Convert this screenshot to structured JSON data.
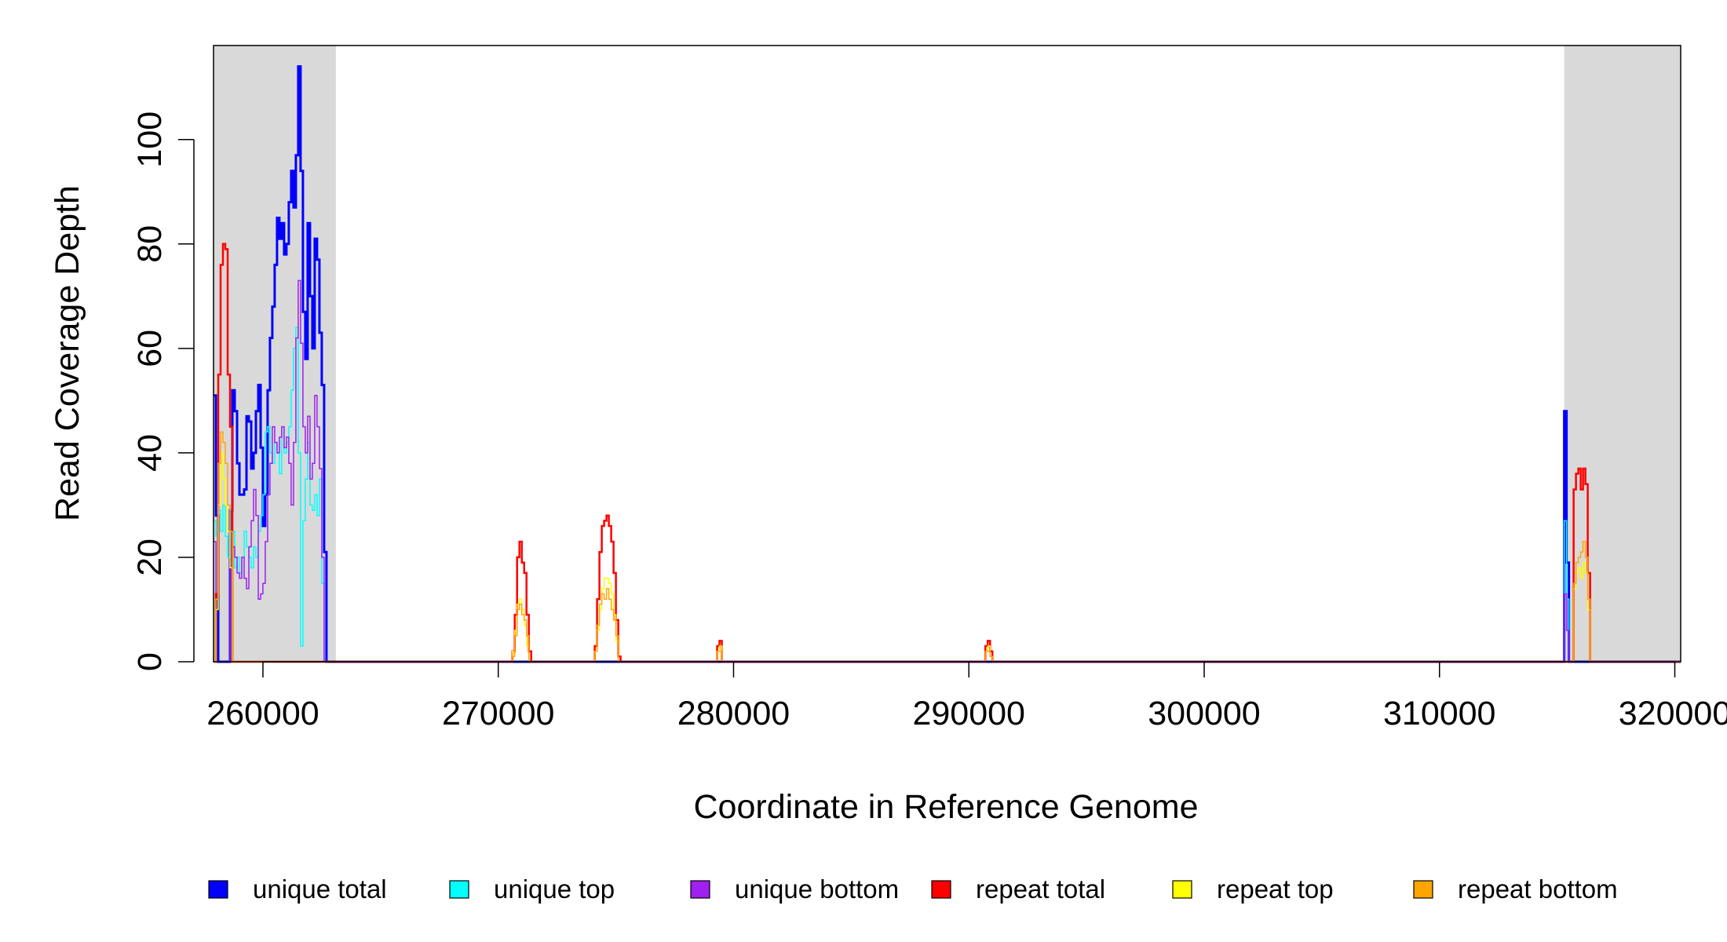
{
  "chart_data": {
    "type": "line",
    "xlabel": "Coordinate in Reference Genome",
    "ylabel": "Read Coverage Depth",
    "xlim": [
      257900,
      320250
    ],
    "ylim": [
      0,
      118
    ],
    "x_ticks": [
      260000,
      270000,
      280000,
      290000,
      300000,
      310000,
      320000
    ],
    "y_ticks": [
      0,
      20,
      40,
      60,
      80,
      100
    ],
    "shaded_regions": [
      [
        257900,
        263100
      ],
      [
        315300,
        320250
      ]
    ],
    "legend_position": "bottom",
    "series": [
      {
        "name": "unique total",
        "color": "#0000ff",
        "width": 3,
        "points": [
          [
            257900,
            51
          ],
          [
            258000,
            28
          ],
          [
            258100,
            0
          ],
          [
            258500,
            0
          ],
          [
            258600,
            29
          ],
          [
            258700,
            52
          ],
          [
            258800,
            48
          ],
          [
            258900,
            38
          ],
          [
            259000,
            32
          ],
          [
            259200,
            33
          ],
          [
            259300,
            47
          ],
          [
            259400,
            46
          ],
          [
            259500,
            37
          ],
          [
            259600,
            40
          ],
          [
            259700,
            48
          ],
          [
            259800,
            53
          ],
          [
            259900,
            41
          ],
          [
            260000,
            26
          ],
          [
            260100,
            32
          ],
          [
            260200,
            52
          ],
          [
            260300,
            62
          ],
          [
            260400,
            68
          ],
          [
            260500,
            76
          ],
          [
            260600,
            85
          ],
          [
            260700,
            81
          ],
          [
            260800,
            84
          ],
          [
            260900,
            78
          ],
          [
            261000,
            80
          ],
          [
            261100,
            88
          ],
          [
            261200,
            94
          ],
          [
            261300,
            87
          ],
          [
            261400,
            97
          ],
          [
            261500,
            114
          ],
          [
            261600,
            94
          ],
          [
            261700,
            67
          ],
          [
            261800,
            58
          ],
          [
            261900,
            84
          ],
          [
            262000,
            70
          ],
          [
            262100,
            60
          ],
          [
            262200,
            81
          ],
          [
            262300,
            77
          ],
          [
            262400,
            63
          ],
          [
            262500,
            53
          ],
          [
            262600,
            21
          ],
          [
            262700,
            0
          ],
          [
            315200,
            0
          ],
          [
            315300,
            48
          ],
          [
            315400,
            19
          ],
          [
            315500,
            0
          ],
          [
            320250,
            0
          ]
        ]
      },
      {
        "name": "unique top",
        "color": "#00ffff",
        "width": 1.5,
        "points": [
          [
            257900,
            27
          ],
          [
            258000,
            24
          ],
          [
            258100,
            29
          ],
          [
            258200,
            25
          ],
          [
            258300,
            30
          ],
          [
            258400,
            24
          ],
          [
            258500,
            20
          ],
          [
            258600,
            29
          ],
          [
            258700,
            25
          ],
          [
            258800,
            18
          ],
          [
            258900,
            20
          ],
          [
            259000,
            17
          ],
          [
            259100,
            20
          ],
          [
            259200,
            25
          ],
          [
            259300,
            22
          ],
          [
            259400,
            20
          ],
          [
            259500,
            18
          ],
          [
            259600,
            22
          ],
          [
            259700,
            20
          ],
          [
            259800,
            25
          ],
          [
            259900,
            28
          ],
          [
            260000,
            32
          ],
          [
            260100,
            44
          ],
          [
            260200,
            45
          ],
          [
            260300,
            40
          ],
          [
            260400,
            38
          ],
          [
            260500,
            42
          ],
          [
            260600,
            40
          ],
          [
            260700,
            36
          ],
          [
            260800,
            45
          ],
          [
            260900,
            40
          ],
          [
            261000,
            42
          ],
          [
            261100,
            45
          ],
          [
            261200,
            52
          ],
          [
            261300,
            60
          ],
          [
            261400,
            64
          ],
          [
            261500,
            40
          ],
          [
            261600,
            3
          ],
          [
            261700,
            27
          ],
          [
            261800,
            35
          ],
          [
            261900,
            42
          ],
          [
            262000,
            30
          ],
          [
            262100,
            29
          ],
          [
            262200,
            32
          ],
          [
            262300,
            28
          ],
          [
            262400,
            35
          ],
          [
            262500,
            15
          ],
          [
            262600,
            0
          ],
          [
            315200,
            0
          ],
          [
            315300,
            27
          ],
          [
            315400,
            12
          ],
          [
            315500,
            0
          ],
          [
            320250,
            0
          ]
        ]
      },
      {
        "name": "unique bottom",
        "color": "#a020f0",
        "width": 1.5,
        "points": [
          [
            257900,
            23
          ],
          [
            258000,
            0
          ],
          [
            258500,
            0
          ],
          [
            258600,
            23
          ],
          [
            258700,
            22
          ],
          [
            258800,
            20
          ],
          [
            258900,
            17
          ],
          [
            259000,
            16
          ],
          [
            259100,
            20
          ],
          [
            259200,
            16
          ],
          [
            259300,
            14
          ],
          [
            259400,
            22
          ],
          [
            259500,
            27
          ],
          [
            259600,
            33
          ],
          [
            259700,
            28
          ],
          [
            259800,
            12
          ],
          [
            259900,
            13
          ],
          [
            260000,
            15
          ],
          [
            260100,
            23
          ],
          [
            260200,
            32
          ],
          [
            260300,
            38
          ],
          [
            260400,
            45
          ],
          [
            260500,
            42
          ],
          [
            260600,
            40
          ],
          [
            260700,
            43
          ],
          [
            260800,
            45
          ],
          [
            260900,
            41
          ],
          [
            261000,
            43
          ],
          [
            261100,
            38
          ],
          [
            261200,
            30
          ],
          [
            261300,
            42
          ],
          [
            261400,
            62
          ],
          [
            261500,
            73
          ],
          [
            261600,
            61
          ],
          [
            261700,
            45
          ],
          [
            261800,
            40
          ],
          [
            261900,
            47
          ],
          [
            262000,
            35
          ],
          [
            262100,
            38
          ],
          [
            262200,
            51
          ],
          [
            262300,
            45
          ],
          [
            262400,
            37
          ],
          [
            262500,
            20
          ],
          [
            262600,
            0
          ],
          [
            315200,
            0
          ],
          [
            315300,
            13
          ],
          [
            315400,
            6
          ],
          [
            315500,
            0
          ],
          [
            320250,
            0
          ]
        ]
      },
      {
        "name": "repeat total",
        "color": "#ff0000",
        "width": 2.5,
        "points": [
          [
            257900,
            0
          ],
          [
            258000,
            13
          ],
          [
            258100,
            55
          ],
          [
            258200,
            76
          ],
          [
            258300,
            80
          ],
          [
            258400,
            79
          ],
          [
            258500,
            55
          ],
          [
            258600,
            45
          ],
          [
            258700,
            0
          ],
          [
            270500,
            0
          ],
          [
            270600,
            2
          ],
          [
            270700,
            9
          ],
          [
            270800,
            20
          ],
          [
            270900,
            23
          ],
          [
            271000,
            19
          ],
          [
            271100,
            17
          ],
          [
            271200,
            9
          ],
          [
            271300,
            2
          ],
          [
            271400,
            0
          ],
          [
            274000,
            0
          ],
          [
            274100,
            3
          ],
          [
            274200,
            12
          ],
          [
            274300,
            21
          ],
          [
            274400,
            26
          ],
          [
            274500,
            27
          ],
          [
            274600,
            28
          ],
          [
            274700,
            26
          ],
          [
            274800,
            23
          ],
          [
            274900,
            17
          ],
          [
            275000,
            8
          ],
          [
            275100,
            1
          ],
          [
            275200,
            0
          ],
          [
            279200,
            0
          ],
          [
            279300,
            3
          ],
          [
            279400,
            4
          ],
          [
            279500,
            0
          ],
          [
            290600,
            0
          ],
          [
            290700,
            3
          ],
          [
            290800,
            4
          ],
          [
            290900,
            2
          ],
          [
            291000,
            0
          ],
          [
            315600,
            0
          ],
          [
            315700,
            33
          ],
          [
            315800,
            36
          ],
          [
            315900,
            37
          ],
          [
            316000,
            33
          ],
          [
            316100,
            37
          ],
          [
            316200,
            34
          ],
          [
            316300,
            17
          ],
          [
            316400,
            0
          ],
          [
            320250,
            0
          ]
        ]
      },
      {
        "name": "repeat top",
        "color": "#ffff00",
        "width": 1.5,
        "points": [
          [
            257900,
            0
          ],
          [
            258000,
            10
          ],
          [
            258100,
            30
          ],
          [
            258200,
            40
          ],
          [
            258300,
            35
          ],
          [
            258400,
            30
          ],
          [
            258500,
            25
          ],
          [
            258600,
            18
          ],
          [
            258700,
            0
          ],
          [
            270500,
            0
          ],
          [
            270600,
            2
          ],
          [
            270700,
            6
          ],
          [
            270800,
            11
          ],
          [
            270900,
            12
          ],
          [
            271000,
            10
          ],
          [
            271100,
            7
          ],
          [
            271200,
            3
          ],
          [
            271300,
            0
          ],
          [
            274000,
            0
          ],
          [
            274100,
            2
          ],
          [
            274200,
            6
          ],
          [
            274300,
            10
          ],
          [
            274400,
            14
          ],
          [
            274500,
            16
          ],
          [
            274600,
            16
          ],
          [
            274700,
            15
          ],
          [
            274800,
            13
          ],
          [
            274900,
            9
          ],
          [
            275000,
            4
          ],
          [
            275100,
            0
          ],
          [
            279200,
            0
          ],
          [
            279300,
            2
          ],
          [
            279400,
            3
          ],
          [
            279500,
            0
          ],
          [
            290600,
            0
          ],
          [
            290700,
            2
          ],
          [
            290800,
            3
          ],
          [
            290900,
            1
          ],
          [
            291000,
            0
          ],
          [
            315600,
            0
          ],
          [
            315700,
            14
          ],
          [
            315800,
            17
          ],
          [
            315900,
            18
          ],
          [
            316000,
            16
          ],
          [
            316100,
            19
          ],
          [
            316200,
            17
          ],
          [
            316300,
            10
          ],
          [
            316400,
            0
          ],
          [
            320250,
            0
          ]
        ]
      },
      {
        "name": "repeat bottom",
        "color": "#ffa500",
        "width": 1.5,
        "points": [
          [
            257900,
            0
          ],
          [
            258000,
            12
          ],
          [
            258100,
            38
          ],
          [
            258200,
            44
          ],
          [
            258300,
            42
          ],
          [
            258400,
            38
          ],
          [
            258500,
            30
          ],
          [
            258600,
            25
          ],
          [
            258700,
            0
          ],
          [
            270500,
            0
          ],
          [
            270600,
            1
          ],
          [
            270700,
            5
          ],
          [
            270800,
            10
          ],
          [
            270900,
            11
          ],
          [
            271000,
            9
          ],
          [
            271100,
            8
          ],
          [
            271200,
            5
          ],
          [
            271300,
            0
          ],
          [
            274000,
            0
          ],
          [
            274100,
            2
          ],
          [
            274200,
            7
          ],
          [
            274300,
            11
          ],
          [
            274400,
            13
          ],
          [
            274500,
            12
          ],
          [
            274600,
            14
          ],
          [
            274700,
            12
          ],
          [
            274800,
            10
          ],
          [
            274900,
            8
          ],
          [
            275000,
            5
          ],
          [
            275100,
            0
          ],
          [
            279200,
            0
          ],
          [
            279300,
            2
          ],
          [
            279400,
            2
          ],
          [
            279500,
            0
          ],
          [
            290600,
            0
          ],
          [
            290700,
            2
          ],
          [
            290800,
            2
          ],
          [
            290900,
            1
          ],
          [
            291000,
            0
          ],
          [
            315600,
            0
          ],
          [
            315700,
            15
          ],
          [
            315800,
            19
          ],
          [
            315900,
            20
          ],
          [
            316000,
            21
          ],
          [
            316100,
            23
          ],
          [
            316200,
            20
          ],
          [
            316300,
            12
          ],
          [
            316400,
            0
          ],
          [
            320250,
            0
          ]
        ]
      }
    ]
  }
}
